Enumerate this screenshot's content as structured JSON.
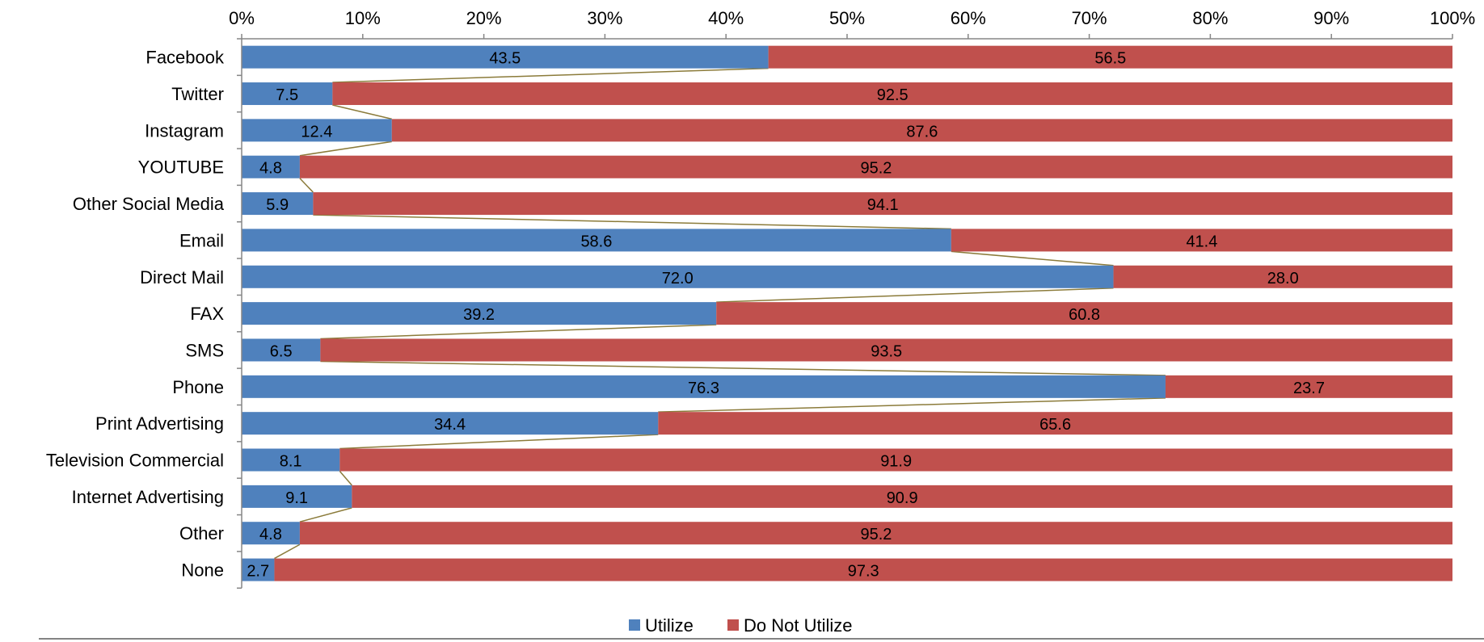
{
  "chart_data": {
    "type": "bar",
    "orientation": "horizontal",
    "stacked": "percent",
    "categories": [
      "Facebook",
      "Twitter",
      "Instagram",
      "YOUTUBE",
      "Other Social Media",
      "Email",
      "Direct Mail",
      "FAX",
      "SMS",
      "Phone",
      "Print Advertising",
      "Television Commercial",
      "Internet Advertising",
      "Other",
      "None"
    ],
    "series": [
      {
        "name": "Utilize",
        "color": "#4F81BD",
        "values": [
          43.5,
          7.5,
          12.4,
          4.8,
          5.9,
          58.6,
          72.0,
          39.2,
          6.5,
          76.3,
          34.4,
          8.1,
          9.1,
          4.8,
          2.7
        ]
      },
      {
        "name": "Do Not Utilize",
        "color": "#C0504D",
        "values": [
          56.5,
          92.5,
          87.6,
          95.2,
          94.1,
          41.4,
          28.0,
          60.8,
          93.5,
          23.7,
          65.6,
          91.9,
          90.9,
          95.2,
          97.3
        ]
      }
    ],
    "value_labels": {
      "Utilize": [
        "43.5",
        "7.5",
        "12.4",
        "4.8",
        "5.9",
        "58.6",
        "72.0",
        "39.2",
        "6.5",
        "76.3",
        "34.4",
        "8.1",
        "9.1",
        "4.8",
        "2.7"
      ],
      "Do Not Utilize": [
        "56.5",
        "92.5",
        "87.6",
        "95.2",
        "94.1",
        "41.4",
        "28.0",
        "60.8",
        "93.5",
        "23.7",
        "65.6",
        "91.9",
        "90.9",
        "95.2",
        "97.3"
      ]
    },
    "x_ticks": [
      "0%",
      "10%",
      "20%",
      "30%",
      "40%",
      "50%",
      "60%",
      "70%",
      "80%",
      "90%",
      "100%"
    ],
    "xlim": [
      0,
      100
    ],
    "x_axis_position": "top",
    "series_lines": true,
    "series_line_color": "#8B7B3A",
    "legend": {
      "position": "bottom",
      "entries": [
        "Utilize",
        "Do Not Utilize"
      ]
    },
    "grid": false
  }
}
